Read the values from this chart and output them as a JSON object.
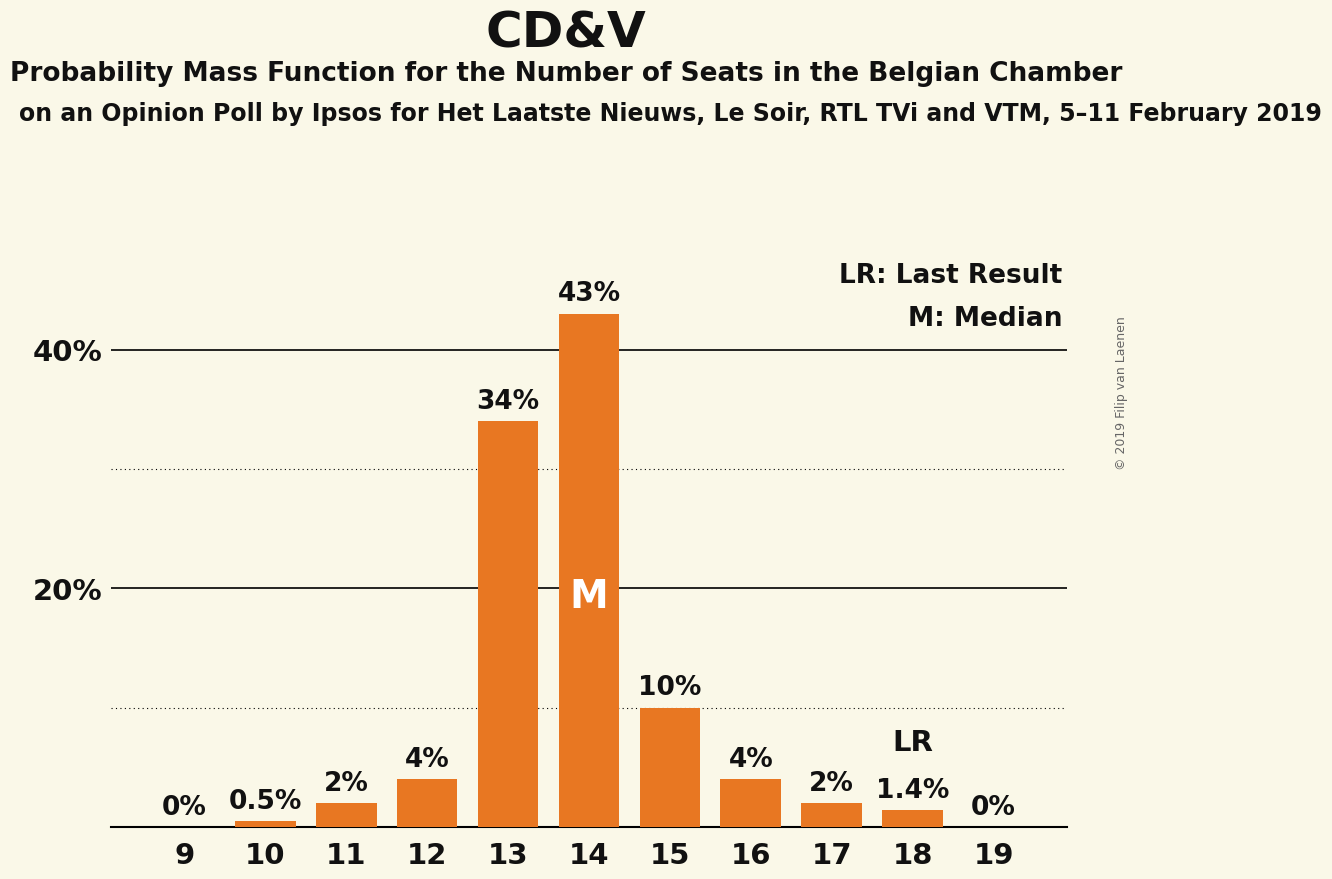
{
  "title": "CD&V",
  "subtitle1": "Probability Mass Function for the Number of Seats in the Belgian Chamber",
  "subtitle2": "on an Opinion Poll by Ipsos for Het Laatste Nieuws, Le Soir, RTL TVi and VTM, 5–11 February 2019",
  "copyright": "© 2019 Filip van Laenen",
  "categories": [
    9,
    10,
    11,
    12,
    13,
    14,
    15,
    16,
    17,
    18,
    19
  ],
  "values": [
    0.0,
    0.5,
    2.0,
    4.0,
    34.0,
    43.0,
    10.0,
    4.0,
    2.0,
    1.4,
    0.0
  ],
  "labels": [
    "0%",
    "0.5%",
    "2%",
    "4%",
    "34%",
    "43%",
    "10%",
    "4%",
    "2%",
    "1.4%",
    "0%"
  ],
  "bar_color": "#E87722",
  "background_color": "#FAF8E8",
  "text_color": "#111111",
  "yticks": [
    0,
    20,
    40
  ],
  "ytick_labels": [
    "",
    "20%",
    "40%"
  ],
  "ymax": 48,
  "legend_lr": "LR: Last Result",
  "legend_m": "M: Median",
  "median_bar": 14,
  "lr_bar": 18,
  "dotted_gridlines": [
    10,
    30
  ],
  "solid_gridlines": [
    20,
    40
  ],
  "title_fontsize": 36,
  "subtitle1_fontsize": 19,
  "subtitle2_fontsize": 17,
  "bar_label_fontsize": 19,
  "axis_label_fontsize": 21,
  "legend_fontsize": 19,
  "copyright_fontsize": 9
}
